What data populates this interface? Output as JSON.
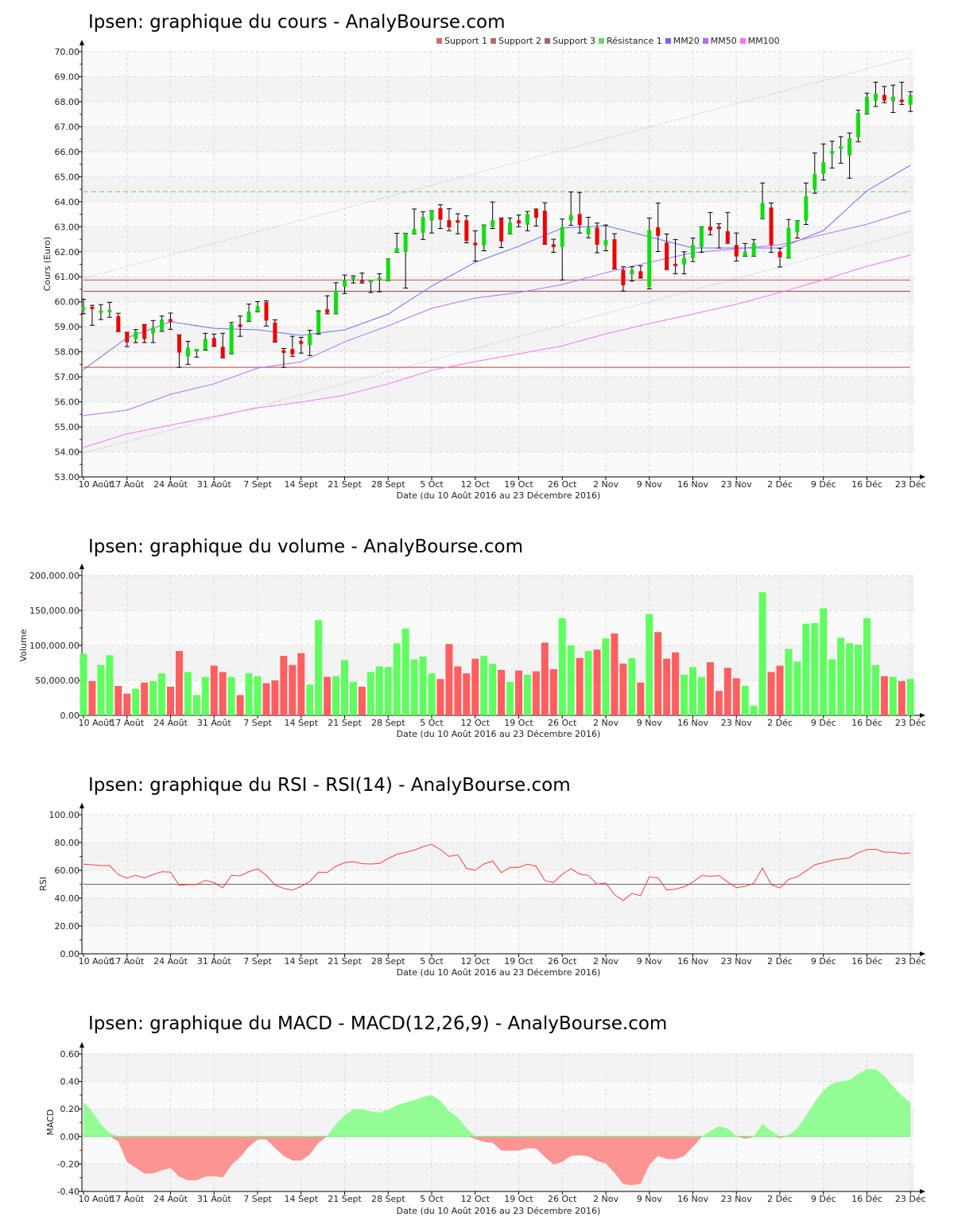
{
  "titles": {
    "price": "Ipsen: graphique du cours - AnalyBourse.com",
    "volume": "Ipsen: graphique du volume - AnalyBourse.com",
    "rsi": "Ipsen: graphique du RSI - RSI(14) - AnalyBourse.com",
    "macd": "Ipsen: graphique du MACD - MACD(12,26,9) - AnalyBourse.com"
  },
  "axis_labels": {
    "price_y": "Cours (Euro)",
    "volume_y": "Volume",
    "rsi_y": "RSI",
    "macd_y": "MACD",
    "x": "Date (du 10 Août 2016 au 23 Décembre 2016)"
  },
  "legend": [
    {
      "label": "Support 1",
      "color": "#d46a6a"
    },
    {
      "label": "Support 2",
      "color": "#b86a6a"
    },
    {
      "label": "Support 3",
      "color": "#9c6a6a"
    },
    {
      "label": "Résistance 1",
      "color": "#6ad46a"
    },
    {
      "label": "MM20",
      "color": "#6a6aff"
    },
    {
      "label": "MM50",
      "color": "#b46aff"
    },
    {
      "label": "MM100",
      "color": "#ff6aff"
    }
  ],
  "colors": {
    "up": "#11dd11",
    "down": "#ee0000",
    "vol_up": "#5fff5f",
    "vol_down": "#ff5f5f",
    "rsi": "#ff4040",
    "macd_pos": "#94fc94",
    "macd_neg": "#fc9494"
  },
  "chart_data": [
    {
      "type": "candlestick",
      "title": "Ipsen: graphique du cours - AnalyBourse.com",
      "xlabel": "Date (du 10 Août 2016 au 23 Décembre 2016)",
      "ylabel": "Cours (Euro)",
      "ylim": [
        53,
        70
      ],
      "x_tick_labels": [
        "10 Août",
        "17 Août",
        "24 Août",
        "31 Août",
        "7 Sept",
        "14 Sept",
        "21 Sept",
        "28 Sept",
        "5 Oct",
        "12 Oct",
        "19 Oct",
        "26 Oct",
        "2 Nov",
        "9 Nov",
        "16 Nov",
        "23 Nov",
        "2 Déc",
        "9 Déc",
        "16 Déc",
        "23 Déc"
      ],
      "x_tick_every_n_days": 5,
      "y_tick_labels": [
        "53.00",
        "54.00",
        "55.00",
        "56.00",
        "57.00",
        "58.00",
        "59.00",
        "60.00",
        "61.00",
        "62.00",
        "63.00",
        "64.00",
        "65.00",
        "66.00",
        "67.00",
        "68.00",
        "69.00",
        "70.00"
      ],
      "ohlc": [
        [
          59.76,
          60.1,
          59.52,
          59.78
        ],
        [
          59.8,
          59.86,
          59.06,
          59.72
        ],
        [
          59.57,
          59.89,
          59.29,
          59.65
        ],
        [
          59.59,
          59.98,
          59.38,
          59.68
        ],
        [
          59.43,
          59.54,
          58.81,
          58.81
        ],
        [
          58.78,
          58.78,
          58.21,
          58.38
        ],
        [
          58.51,
          58.89,
          58.37,
          58.81
        ],
        [
          59.09,
          59.09,
          58.37,
          58.51
        ],
        [
          58.74,
          59.25,
          58.37,
          58.97
        ],
        [
          58.86,
          59.43,
          58.82,
          59.29
        ],
        [
          59.31,
          59.55,
          58.9,
          59.19
        ],
        [
          58.68,
          58.68,
          57.38,
          57.97
        ],
        [
          57.81,
          58.42,
          57.5,
          58.17
        ],
        [
          58.0,
          58.07,
          57.79,
          58.12
        ],
        [
          58.08,
          58.74,
          58.07,
          58.52
        ],
        [
          58.55,
          58.71,
          58.22,
          58.23
        ],
        [
          58.2,
          58.74,
          57.76,
          57.76
        ],
        [
          57.92,
          59.17,
          57.92,
          59.1
        ],
        [
          59.09,
          59.43,
          58.62,
          59.01
        ],
        [
          59.23,
          59.91,
          59.22,
          59.61
        ],
        [
          59.6,
          60.01,
          59.6,
          59.83
        ],
        [
          59.99,
          60.04,
          59.03,
          59.25
        ],
        [
          59.17,
          59.28,
          58.39,
          58.39
        ],
        [
          58.06,
          58.13,
          57.38,
          57.96
        ],
        [
          58.11,
          58.62,
          57.82,
          57.9
        ],
        [
          58.43,
          58.58,
          57.95,
          58.32
        ],
        [
          58.27,
          58.86,
          57.85,
          58.71
        ],
        [
          58.75,
          59.64,
          58.71,
          59.62
        ],
        [
          59.7,
          60.24,
          59.52,
          59.56
        ],
        [
          59.52,
          60.76,
          59.52,
          60.44
        ],
        [
          60.61,
          61.07,
          60.33,
          60.87
        ],
        [
          60.91,
          61.04,
          60.75,
          61.0
        ],
        [
          60.88,
          61.15,
          60.75,
          60.81
        ],
        [
          60.82,
          60.85,
          60.37,
          60.87
        ],
        [
          60.88,
          61.12,
          60.4,
          60.97
        ],
        [
          60.85,
          61.71,
          60.85,
          61.71
        ],
        [
          61.98,
          62.74,
          61.98,
          62.15
        ],
        [
          62.0,
          62.74,
          60.55,
          62.74
        ],
        [
          62.72,
          63.71,
          62.72,
          62.91
        ],
        [
          62.76,
          63.6,
          62.49,
          63.39
        ],
        [
          63.24,
          63.64,
          62.75,
          63.64
        ],
        [
          63.74,
          63.88,
          62.93,
          63.28
        ],
        [
          63.26,
          63.72,
          62.84,
          62.98
        ],
        [
          63.26,
          63.52,
          62.72,
          63.2
        ],
        [
          63.26,
          63.44,
          62.36,
          62.44
        ],
        [
          62.36,
          62.84,
          61.63,
          62.3
        ],
        [
          62.25,
          63.07,
          62.04,
          63.07
        ],
        [
          63.0,
          63.99,
          62.93,
          63.26
        ],
        [
          63.35,
          63.35,
          62.17,
          62.41
        ],
        [
          62.72,
          63.35,
          62.72,
          63.17
        ],
        [
          63.26,
          63.47,
          63.0,
          63.13
        ],
        [
          63.08,
          63.61,
          62.84,
          63.51
        ],
        [
          63.68,
          63.71,
          63.03,
          63.36
        ],
        [
          63.64,
          63.96,
          62.3,
          62.3
        ],
        [
          62.3,
          62.5,
          61.98,
          62.19
        ],
        [
          62.19,
          63.31,
          60.87,
          62.99
        ],
        [
          63.25,
          64.39,
          63.06,
          63.47
        ],
        [
          63.51,
          64.37,
          62.75,
          63.06
        ],
        [
          62.7,
          63.38,
          62.56,
          62.97
        ],
        [
          62.97,
          63.15,
          61.96,
          62.28
        ],
        [
          62.25,
          63.07,
          62.04,
          62.47
        ],
        [
          62.5,
          62.72,
          61.31,
          61.31
        ],
        [
          61.28,
          61.4,
          60.43,
          60.66
        ],
        [
          61.1,
          61.4,
          60.83,
          61.28
        ],
        [
          61.22,
          61.44,
          60.95,
          60.97
        ],
        [
          60.6,
          63.35,
          60.52,
          62.87
        ],
        [
          62.98,
          63.95,
          62.01,
          62.64
        ],
        [
          62.37,
          62.71,
          61.29,
          61.29
        ],
        [
          61.52,
          62.49,
          61.12,
          61.43
        ],
        [
          61.49,
          62.0,
          61.12,
          61.76
        ],
        [
          61.75,
          62.55,
          61.61,
          62.27
        ],
        [
          62.19,
          63.0,
          61.98,
          63.0
        ],
        [
          63.01,
          63.57,
          62.68,
          62.85
        ],
        [
          63.01,
          63.12,
          62.15,
          62.96
        ],
        [
          62.82,
          63.57,
          62.34,
          62.37
        ],
        [
          62.27,
          62.75,
          61.63,
          61.81
        ],
        [
          61.82,
          62.33,
          61.82,
          61.99
        ],
        [
          61.82,
          62.49,
          61.82,
          62.35
        ],
        [
          63.32,
          64.75,
          63.32,
          63.95
        ],
        [
          63.77,
          63.95,
          61.98,
          62.27
        ],
        [
          62.01,
          62.14,
          61.39,
          61.78
        ],
        [
          61.75,
          63.29,
          61.75,
          62.95
        ],
        [
          62.78,
          63.24,
          62.55,
          63.24
        ],
        [
          63.24,
          64.75,
          63.09,
          64.22
        ],
        [
          64.48,
          65.95,
          64.34,
          65.11
        ],
        [
          65.12,
          66.31,
          64.87,
          65.58
        ],
        [
          65.91,
          66.42,
          65.35,
          66.03
        ],
        [
          66.16,
          66.6,
          65.54,
          66.22
        ],
        [
          65.85,
          66.75,
          64.94,
          66.54
        ],
        [
          66.58,
          67.66,
          66.4,
          67.55
        ],
        [
          67.51,
          68.34,
          67.51,
          68.19
        ],
        [
          68.04,
          68.78,
          67.81,
          68.32
        ],
        [
          68.27,
          68.61,
          67.96,
          68.04
        ],
        [
          68.02,
          68.66,
          67.57,
          68.19
        ],
        [
          68.08,
          68.78,
          67.89,
          68.02
        ],
        [
          67.88,
          68.4,
          67.61,
          68.27
        ]
      ],
      "levels": {
        "Support 1": 60.87,
        "Support 2": 60.42,
        "Support 3": 57.38,
        "Résistance 1": 64.4
      },
      "moving_averages_sampled_every_5_days": {
        "MM20": [
          57.29,
          58.56,
          59.2,
          58.94,
          58.88,
          58.66,
          58.88,
          59.51,
          60.63,
          61.58,
          62.22,
          62.95,
          63.04,
          62.6,
          62.15,
          62.15,
          62.15,
          62.85,
          64.44,
          65.46
        ],
        "MM50": [
          55.45,
          55.67,
          56.3,
          56.72,
          57.35,
          57.6,
          58.4,
          59.04,
          59.74,
          60.15,
          60.37,
          60.69,
          61.16,
          61.58,
          61.96,
          62.12,
          62.28,
          62.69,
          63.1,
          63.64
        ],
        "MM100": [
          54.18,
          54.72,
          55.07,
          55.41,
          55.76,
          55.99,
          56.27,
          56.72,
          57.26,
          57.61,
          57.92,
          58.24,
          58.72,
          59.13,
          59.51,
          59.9,
          60.37,
          60.88,
          61.42,
          61.87
        ]
      },
      "trend_channel": {
        "upper": [
          60.94,
          69.78
        ],
        "lower": [
          53.95,
          62.79
        ]
      }
    },
    {
      "type": "bar",
      "title": "Ipsen: graphique du volume - AnalyBourse.com",
      "ylabel": "Volume",
      "ylim": [
        0,
        200000
      ],
      "y_tick_labels": [
        "0.00",
        "50,000.00",
        "100,000.00",
        "150,000.00",
        "200,000.00"
      ],
      "values": [
        88000,
        49000,
        72000,
        86000,
        42000,
        31000,
        38000,
        47000,
        49000,
        60000,
        41000,
        92000,
        62000,
        29000,
        55000,
        71000,
        62000,
        55000,
        29000,
        60000,
        56000,
        46000,
        50000,
        85000,
        72000,
        89000,
        44000,
        136000,
        55000,
        56000,
        79000,
        48000,
        41000,
        62000,
        70000,
        69000,
        103000,
        124000,
        80000,
        84000,
        60000,
        52000,
        102000,
        70000,
        60000,
        81000,
        85000,
        74000,
        65000,
        48000,
        64000,
        58000,
        63000,
        104000,
        66000,
        139000,
        100000,
        82000,
        92000,
        94000,
        110000,
        117000,
        74000,
        82000,
        47000,
        145000,
        119000,
        81000,
        90000,
        58000,
        69000,
        55000,
        76000,
        35000,
        68000,
        53000,
        42000,
        14000,
        176000,
        62000,
        71000,
        95000,
        77000,
        131000,
        132000,
        153000,
        80000,
        111000,
        103000,
        101000,
        139000,
        72000,
        56000,
        55000,
        49000,
        52000
      ]
    },
    {
      "type": "line",
      "title": "Ipsen: graphique du RSI - RSI(14) - AnalyBourse.com",
      "ylabel": "RSI",
      "ylim": [
        0,
        100
      ],
      "reference_line": 50,
      "y_tick_labels": [
        "0.00",
        "20.00",
        "40.00",
        "60.00",
        "80.00",
        "100.00"
      ],
      "values": [
        64.4,
        64,
        63.5,
        63.4,
        57,
        54.5,
        56.5,
        54.5,
        57,
        59,
        58.7,
        49.3,
        49.7,
        49.7,
        52.8,
        51.2,
        47.4,
        56.4,
        56,
        59,
        61.1,
        56.5,
        49.5,
        47,
        45.7,
        48.5,
        52,
        58.7,
        58.5,
        63,
        65.5,
        66.3,
        64.8,
        64.6,
        65,
        68.5,
        71.5,
        73,
        74.5,
        77,
        78.7,
        75,
        70,
        71.2,
        61.5,
        60,
        64.5,
        66.7,
        58.3,
        62.1,
        62.1,
        64.4,
        63,
        52.6,
        51.2,
        57.3,
        61.1,
        57.3,
        56.4,
        50,
        50.9,
        42.5,
        38.3,
        43.4,
        41.7,
        55.4,
        54.5,
        45.9,
        46.5,
        48.2,
        51.6,
        56.2,
        55.8,
        56.2,
        51.6,
        47.6,
        48.4,
        50.7,
        61.7,
        49.7,
        47.4,
        53.5,
        55.4,
        59.6,
        64,
        65.5,
        67.2,
        68.2,
        69.1,
        72.6,
        74.9,
        75.2,
        73.1,
        73.1,
        72,
        72.6
      ]
    },
    {
      "type": "area",
      "title": "Ipsen: graphique du MACD - MACD(12,26,9) - AnalyBourse.com",
      "ylabel": "MACD",
      "ylim": [
        -0.4,
        0.6
      ],
      "y_tick_labels": [
        "-0.40",
        "-0.20",
        "0.00",
        "0.20",
        "0.40",
        "0.60"
      ],
      "values": [
        0.25,
        0.18,
        0.09,
        0.025,
        -0.036,
        -0.185,
        -0.227,
        -0.269,
        -0.269,
        -0.246,
        -0.23,
        -0.293,
        -0.318,
        -0.318,
        -0.293,
        -0.288,
        -0.299,
        -0.208,
        -0.15,
        -0.074,
        -0.023,
        -0.021,
        -0.084,
        -0.141,
        -0.175,
        -0.175,
        -0.131,
        -0.046,
        0.006,
        0.088,
        0.154,
        0.198,
        0.198,
        0.183,
        0.173,
        0.196,
        0.227,
        0.246,
        0.265,
        0.288,
        0.301,
        0.259,
        0.183,
        0.139,
        0.059,
        -0.017,
        -0.04,
        -0.046,
        -0.103,
        -0.103,
        -0.103,
        -0.086,
        -0.088,
        -0.15,
        -0.204,
        -0.185,
        -0.141,
        -0.137,
        -0.145,
        -0.179,
        -0.198,
        -0.265,
        -0.347,
        -0.354,
        -0.345,
        -0.208,
        -0.141,
        -0.164,
        -0.166,
        -0.141,
        -0.078,
        -0.004,
        0.04,
        0.074,
        0.059,
        0.002,
        -0.017,
        -0.004,
        0.091,
        0.04,
        -0.011,
        0.011,
        0.059,
        0.149,
        0.25,
        0.335,
        0.383,
        0.402,
        0.411,
        0.455,
        0.491,
        0.488,
        0.44,
        0.364,
        0.297,
        0.246
      ]
    }
  ]
}
